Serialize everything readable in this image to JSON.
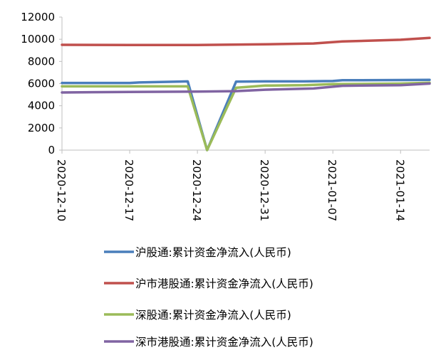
{
  "chart_data": {
    "type": "line",
    "title": "",
    "xlabel": "",
    "ylabel": "",
    "ylim": [
      0,
      12000
    ],
    "yticks": [
      0,
      2000,
      4000,
      6000,
      8000,
      10000,
      12000
    ],
    "xlim": [
      "2020-12-10",
      "2021-01-17"
    ],
    "xticks": [
      "2020-12-10",
      "2020-12-17",
      "2020-12-24",
      "2020-12-31",
      "2021-01-07",
      "2021-01-14"
    ],
    "grid": false,
    "legend_position": "bottom",
    "series": [
      {
        "name": "沪股通:累计资金净流入(人民币)",
        "color": "#4a7ebb",
        "points": [
          [
            "2020-12-10",
            6060
          ],
          [
            "2020-12-17",
            6060
          ],
          [
            "2020-12-18",
            6100
          ],
          [
            "2020-12-23",
            6200
          ],
          [
            "2020-12-25",
            0
          ],
          [
            "2020-12-28",
            6180
          ],
          [
            "2020-12-31",
            6200
          ],
          [
            "2021-01-04",
            6200
          ],
          [
            "2021-01-07",
            6230
          ],
          [
            "2021-01-08",
            6300
          ],
          [
            "2021-01-14",
            6320
          ],
          [
            "2021-01-17",
            6340
          ]
        ]
      },
      {
        "name": "沪市港股通:累计资金净流入(人民币)",
        "color": "#c0504d",
        "points": [
          [
            "2020-12-10",
            9500
          ],
          [
            "2020-12-17",
            9480
          ],
          [
            "2020-12-24",
            9480
          ],
          [
            "2020-12-31",
            9540
          ],
          [
            "2021-01-05",
            9620
          ],
          [
            "2021-01-08",
            9800
          ],
          [
            "2021-01-14",
            9950
          ],
          [
            "2021-01-17",
            10120
          ]
        ]
      },
      {
        "name": "深股通:累计资金净流入(人民币)",
        "color": "#9bbb59",
        "points": [
          [
            "2020-12-10",
            5750
          ],
          [
            "2020-12-17",
            5750
          ],
          [
            "2020-12-23",
            5750
          ],
          [
            "2020-12-25",
            0
          ],
          [
            "2020-12-28",
            5620
          ],
          [
            "2020-12-31",
            5820
          ],
          [
            "2021-01-04",
            5850
          ],
          [
            "2021-01-07",
            5950
          ],
          [
            "2021-01-14",
            6000
          ],
          [
            "2021-01-17",
            6080
          ]
        ]
      },
      {
        "name": "深市港股通:累计资金净流入(人民币)",
        "color": "#8064a2",
        "points": [
          [
            "2020-12-10",
            5200
          ],
          [
            "2020-12-17",
            5250
          ],
          [
            "2020-12-24",
            5280
          ],
          [
            "2020-12-28",
            5320
          ],
          [
            "2020-12-31",
            5450
          ],
          [
            "2021-01-05",
            5560
          ],
          [
            "2021-01-08",
            5800
          ],
          [
            "2021-01-14",
            5860
          ],
          [
            "2021-01-17",
            6000
          ]
        ]
      }
    ]
  }
}
